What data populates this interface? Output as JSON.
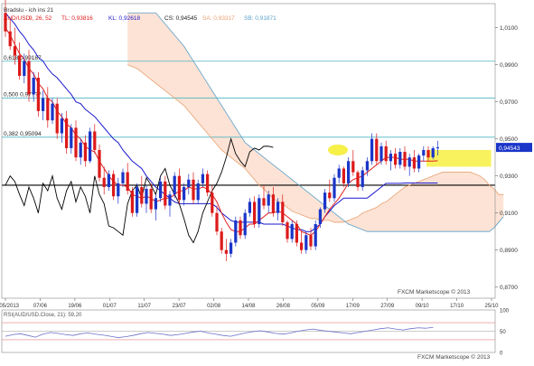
{
  "main_chart": {
    "title": "Ichimoku",
    "legend_header": "Bradslu - ich ins 21",
    "legend": {
      "symbol": "AUD/USD",
      "params": "9, 26, 52",
      "tl_label": "TL: 0,93816",
      "kl_label": "KL: 0,92618",
      "cs_label": "CS: 0,94545",
      "sa_label": "SA: 0,93317",
      "sb_label": "SB: 0,91871"
    },
    "watermark": "FXCM Marketscope © 2013",
    "price_badge": "0,94543",
    "fib_labels": [
      {
        "text": "0,618  0,99187",
        "price": 0.9919
      },
      {
        "text": "0,500  0,97???",
        "price": 0.972
      },
      {
        "text": "0,382  0,95094",
        "price": 0.9509
      }
    ]
  },
  "chart_data": {
    "type": "line",
    "series_type": "candlestick",
    "y_ticks": [
      "1,0100",
      "0,9900",
      "0,9700",
      "0,9500",
      "0,9300",
      "0,9100",
      "0,8900",
      "0,8700"
    ],
    "ylim": [
      0.864,
      1.023
    ],
    "x_ticks": [
      "14/05/2013",
      "07/06",
      "19/06",
      "01/07",
      "11/07",
      "23/07",
      "02/08",
      "14/08",
      "26/08",
      "05/09",
      "17/09",
      "27/09",
      "09/10",
      "17/10",
      "25/10"
    ],
    "horizontal_levels": [
      {
        "name": "0,618",
        "value": 0.9919,
        "color": "#4fb4c4"
      },
      {
        "name": "0,500",
        "value": 0.972,
        "color": "#4fb4c4"
      },
      {
        "name": "0,382",
        "value": 0.9509,
        "color": "#4fb4c4"
      },
      {
        "name": "support",
        "value": 0.925,
        "color": "#000000"
      }
    ],
    "candles_count": 105,
    "candles": [
      [
        1.018,
        1.025,
        1.005,
        1.008
      ],
      [
        1.008,
        1.015,
        0.998,
        1.0
      ],
      [
        1.0,
        1.01,
        0.99,
        0.995
      ],
      [
        0.995,
        1.002,
        0.982,
        0.984
      ],
      [
        0.984,
        0.996,
        0.98,
        0.992
      ],
      [
        0.992,
        0.998,
        0.97,
        0.974
      ],
      [
        0.974,
        0.986,
        0.97,
        0.983
      ],
      [
        0.983,
        0.986,
        0.962,
        0.965
      ],
      [
        0.965,
        0.976,
        0.96,
        0.972
      ],
      [
        0.972,
        0.978,
        0.956,
        0.96
      ],
      [
        0.96,
        0.972,
        0.958,
        0.969
      ],
      [
        0.969,
        0.972,
        0.95,
        0.953
      ],
      [
        0.953,
        0.964,
        0.948,
        0.961
      ],
      [
        0.961,
        0.965,
        0.942,
        0.945
      ],
      [
        0.945,
        0.958,
        0.942,
        0.956
      ],
      [
        0.956,
        0.96,
        0.938,
        0.94
      ],
      [
        0.94,
        0.95,
        0.936,
        0.948
      ],
      [
        0.948,
        0.952,
        0.935,
        0.938
      ],
      [
        0.938,
        0.956,
        0.937,
        0.954
      ],
      [
        0.954,
        0.958,
        0.942,
        0.944
      ],
      [
        0.944,
        0.947,
        0.927,
        0.929
      ],
      [
        0.929,
        0.935,
        0.92,
        0.924
      ],
      [
        0.924,
        0.933,
        0.922,
        0.931
      ],
      [
        0.931,
        0.933,
        0.917,
        0.919
      ],
      [
        0.919,
        0.929,
        0.915,
        0.926
      ],
      [
        0.926,
        0.934,
        0.924,
        0.932
      ],
      [
        0.932,
        0.937,
        0.92,
        0.922
      ],
      [
        0.922,
        0.924,
        0.908,
        0.91
      ],
      [
        0.91,
        0.926,
        0.908,
        0.924
      ],
      [
        0.924,
        0.93,
        0.913,
        0.915
      ],
      [
        0.915,
        0.925,
        0.91,
        0.923
      ],
      [
        0.923,
        0.926,
        0.91,
        0.912
      ],
      [
        0.912,
        0.92,
        0.906,
        0.918
      ],
      [
        0.918,
        0.929,
        0.916,
        0.927
      ],
      [
        0.927,
        0.93,
        0.912,
        0.914
      ],
      [
        0.914,
        0.922,
        0.908,
        0.92
      ],
      [
        0.92,
        0.932,
        0.918,
        0.93
      ],
      [
        0.93,
        0.934,
        0.915,
        0.917
      ],
      [
        0.917,
        0.926,
        0.914,
        0.924
      ],
      [
        0.924,
        0.931,
        0.92,
        0.928
      ],
      [
        0.928,
        0.932,
        0.915,
        0.917
      ],
      [
        0.917,
        0.928,
        0.915,
        0.926
      ],
      [
        0.926,
        0.934,
        0.924,
        0.931
      ],
      [
        0.931,
        0.933,
        0.919,
        0.921
      ],
      [
        0.921,
        0.925,
        0.908,
        0.91
      ],
      [
        0.91,
        0.914,
        0.898,
        0.9
      ],
      [
        0.9,
        0.902,
        0.888,
        0.89
      ],
      [
        0.89,
        0.896,
        0.884,
        0.888
      ],
      [
        0.888,
        0.896,
        0.886,
        0.894
      ],
      [
        0.894,
        0.908,
        0.892,
        0.906
      ],
      [
        0.906,
        0.908,
        0.896,
        0.898
      ],
      [
        0.898,
        0.912,
        0.896,
        0.91
      ],
      [
        0.91,
        0.918,
        0.908,
        0.916
      ],
      [
        0.916,
        0.919,
        0.902,
        0.904
      ],
      [
        0.904,
        0.92,
        0.902,
        0.918
      ],
      [
        0.918,
        0.925,
        0.912,
        0.914
      ],
      [
        0.914,
        0.922,
        0.91,
        0.92
      ],
      [
        0.92,
        0.924,
        0.908,
        0.91
      ],
      [
        0.91,
        0.918,
        0.906,
        0.916
      ],
      [
        0.916,
        0.92,
        0.903,
        0.905
      ],
      [
        0.905,
        0.906,
        0.894,
        0.896
      ],
      [
        0.896,
        0.906,
        0.894,
        0.904
      ],
      [
        0.904,
        0.906,
        0.892,
        0.894
      ],
      [
        0.894,
        0.9,
        0.888,
        0.89
      ],
      [
        0.89,
        0.9,
        0.888,
        0.898
      ],
      [
        0.898,
        0.902,
        0.89,
        0.892
      ],
      [
        0.892,
        0.906,
        0.89,
        0.904
      ],
      [
        0.904,
        0.913,
        0.902,
        0.912
      ],
      [
        0.912,
        0.923,
        0.91,
        0.921
      ],
      [
        0.921,
        0.928,
        0.916,
        0.918
      ],
      [
        0.918,
        0.931,
        0.916,
        0.929
      ],
      [
        0.929,
        0.936,
        0.926,
        0.934
      ],
      [
        0.934,
        0.935,
        0.924,
        0.926
      ],
      [
        0.926,
        0.94,
        0.924,
        0.938
      ],
      [
        0.938,
        0.944,
        0.93,
        0.932
      ],
      [
        0.932,
        0.933,
        0.922,
        0.924
      ],
      [
        0.924,
        0.935,
        0.922,
        0.933
      ],
      [
        0.933,
        0.94,
        0.93,
        0.938
      ],
      [
        0.938,
        0.953,
        0.936,
        0.95
      ],
      [
        0.95,
        0.953,
        0.936,
        0.938
      ],
      [
        0.938,
        0.948,
        0.936,
        0.946
      ],
      [
        0.946,
        0.949,
        0.936,
        0.938
      ],
      [
        0.938,
        0.944,
        0.933,
        0.942
      ],
      [
        0.942,
        0.945,
        0.934,
        0.936
      ],
      [
        0.936,
        0.945,
        0.934,
        0.943
      ],
      [
        0.943,
        0.946,
        0.933,
        0.935
      ],
      [
        0.935,
        0.942,
        0.93,
        0.94
      ],
      [
        0.94,
        0.944,
        0.932,
        0.934
      ],
      [
        0.934,
        0.942,
        0.932,
        0.941
      ],
      [
        0.941,
        0.946,
        0.938,
        0.944
      ],
      [
        0.944,
        0.946,
        0.938,
        0.94
      ],
      [
        0.94,
        0.946,
        0.939,
        0.945
      ],
      [
        0.945,
        0.949,
        0.941,
        0.9454
      ]
    ],
    "tenkan_sen": [
      1.01,
      1.006,
      1.001,
      0.996,
      0.993,
      0.988,
      0.985,
      0.98,
      0.977,
      0.972,
      0.97,
      0.965,
      0.962,
      0.958,
      0.956,
      0.952,
      0.95,
      0.946,
      0.944,
      0.943,
      0.938,
      0.934,
      0.93,
      0.927,
      0.925,
      0.925,
      0.924,
      0.92,
      0.919,
      0.918,
      0.919,
      0.918,
      0.916,
      0.917,
      0.918,
      0.918,
      0.92,
      0.922,
      0.922,
      0.924,
      0.923,
      0.923,
      0.924,
      0.923,
      0.92,
      0.916,
      0.91,
      0.905,
      0.901,
      0.9,
      0.9,
      0.902,
      0.904,
      0.904,
      0.906,
      0.908,
      0.91,
      0.91,
      0.911,
      0.91,
      0.908,
      0.906,
      0.904,
      0.9,
      0.899,
      0.898,
      0.9,
      0.904,
      0.908,
      0.912,
      0.915,
      0.918,
      0.922,
      0.926,
      0.928,
      0.929,
      0.93,
      0.932,
      0.934,
      0.936,
      0.938,
      0.94,
      0.94,
      0.94,
      0.939,
      0.939,
      0.939,
      0.938,
      0.938,
      0.938,
      0.938,
      0.938,
      0.9382
    ],
    "kijun_sen": [
      1.018,
      1.015,
      1.012,
      1.008,
      1.005,
      1.001,
      0.998,
      0.994,
      0.992,
      0.988,
      0.985,
      0.983,
      0.98,
      0.977,
      0.974,
      0.97,
      0.969,
      0.966,
      0.964,
      0.962,
      0.959,
      0.956,
      0.953,
      0.95,
      0.948,
      0.944,
      0.941,
      0.938,
      0.936,
      0.934,
      0.93,
      0.927,
      0.924,
      0.922,
      0.92,
      0.918,
      0.916,
      0.915,
      0.915,
      0.915,
      0.915,
      0.915,
      0.915,
      0.915,
      0.915,
      0.913,
      0.91,
      0.908,
      0.906,
      0.905,
      0.905,
      0.905,
      0.905,
      0.905,
      0.905,
      0.904,
      0.904,
      0.904,
      0.904,
      0.904,
      0.903,
      0.902,
      0.901,
      0.901,
      0.9,
      0.9,
      0.902,
      0.904,
      0.908,
      0.911,
      0.914,
      0.916,
      0.918,
      0.918,
      0.918,
      0.918,
      0.918,
      0.918,
      0.92,
      0.922,
      0.924,
      0.926,
      0.926,
      0.926,
      0.926,
      0.9262,
      0.9262,
      0.9262,
      0.9262,
      0.9262,
      0.9262,
      0.9262,
      0.9262
    ],
    "chikou_span": [
      0.925,
      0.93,
      0.927,
      0.92,
      0.914,
      0.924,
      0.918,
      0.91,
      0.926,
      0.922,
      0.93,
      0.918,
      0.912,
      0.922,
      0.927,
      0.916,
      0.924,
      0.919,
      0.91,
      0.93,
      0.92,
      0.915,
      0.903,
      0.902,
      0.9,
      0.898,
      0.915,
      0.922,
      0.925,
      0.918,
      0.929,
      0.925,
      0.92,
      0.93,
      0.934,
      0.925,
      0.92,
      0.915,
      0.907,
      0.898,
      0.894,
      0.9,
      0.91,
      0.916,
      0.922,
      0.926,
      0.932,
      0.94,
      0.95,
      0.942,
      0.938,
      0.935,
      0.943,
      0.945,
      0.944,
      0.946,
      0.946,
      0.9454
    ],
    "senkou_a": [
      0.99,
      0.989,
      0.988,
      0.986,
      0.984,
      0.982,
      0.98,
      0.978,
      0.976,
      0.974,
      0.972,
      0.97,
      0.968,
      0.965,
      0.962,
      0.959,
      0.956,
      0.953,
      0.95,
      0.947,
      0.944,
      0.942,
      0.94,
      0.938,
      0.936,
      0.934,
      0.931,
      0.928,
      0.925,
      0.923,
      0.92,
      0.918,
      0.916,
      0.915,
      0.913,
      0.911,
      0.91,
      0.909,
      0.908,
      0.907,
      0.907,
      0.906,
      0.906,
      0.906,
      0.905,
      0.905,
      0.905,
      0.906,
      0.907,
      0.908,
      0.91,
      0.911,
      0.912,
      0.913,
      0.915,
      0.916,
      0.918,
      0.92,
      0.922,
      0.924,
      0.925,
      0.926,
      0.927,
      0.928,
      0.929,
      0.93,
      0.931,
      0.932,
      0.932,
      0.932,
      0.932,
      0.932,
      0.932,
      0.932,
      0.931,
      0.93,
      0.928,
      0.925,
      0.923,
      0.92,
      0.92
    ],
    "senkou_b": [
      1.018,
      1.018,
      1.018,
      1.018,
      1.018,
      1.018,
      1.018,
      1.015,
      1.012,
      1.009,
      1.006,
      1.003,
      1.0,
      0.996,
      0.992,
      0.988,
      0.984,
      0.98,
      0.976,
      0.972,
      0.968,
      0.964,
      0.96,
      0.956,
      0.952,
      0.948,
      0.946,
      0.944,
      0.942,
      0.94,
      0.938,
      0.936,
      0.934,
      0.932,
      0.93,
      0.928,
      0.926,
      0.924,
      0.922,
      0.92,
      0.918,
      0.916,
      0.914,
      0.912,
      0.91,
      0.908,
      0.906,
      0.904,
      0.903,
      0.902,
      0.901,
      0.9,
      0.9,
      0.9,
      0.9,
      0.9,
      0.9,
      0.9,
      0.9,
      0.9,
      0.9,
      0.9,
      0.9,
      0.9,
      0.9,
      0.9,
      0.9,
      0.9,
      0.9,
      0.9,
      0.9,
      0.9,
      0.9,
      0.9,
      0.9,
      0.9,
      0.9,
      0.9,
      0.902,
      0.905,
      0.908
    ],
    "highlight_box": {
      "from_index": 90,
      "to_index": 103,
      "top": 0.944,
      "bottom": 0.935
    },
    "highlight_ellipse": {
      "index": 70,
      "value": 0.944
    },
    "rsi": {
      "label": "RSI(AUD/USD.Close, 21): 59,20",
      "y_ticks": [
        "100",
        "50",
        "0"
      ],
      "ylim": [
        0,
        100
      ],
      "levels": [
        70,
        50,
        30
      ],
      "values": [
        38,
        42,
        44,
        40,
        36,
        43,
        47,
        45,
        42,
        40,
        44,
        46,
        43,
        41,
        38,
        35,
        37,
        40,
        44,
        47,
        45,
        43,
        40,
        42,
        45,
        48,
        50,
        46,
        43,
        40,
        38,
        42,
        46,
        49,
        51,
        48,
        45,
        43,
        46,
        50,
        53,
        55,
        52,
        50,
        48,
        46,
        44,
        47,
        50,
        53,
        56,
        58,
        55,
        53,
        56,
        58,
        57,
        59
      ]
    },
    "rsi_watermark": "FXCM Marketscope © 2013"
  },
  "colors": {
    "bull": "#1a35c8",
    "bear": "#dd1a1a",
    "tenkan": "#e02020",
    "kijun": "#1a1acc",
    "chikou": "#000000",
    "senkou_a": "#e8a070",
    "senkou_b": "#5aa0c8",
    "cloud_bull": "#fde0d0",
    "cloud_bear": "#d8ecf6",
    "fib": "#4fb4c4",
    "highlight": "#f5ed28",
    "price_badge": "#1a35c8"
  }
}
